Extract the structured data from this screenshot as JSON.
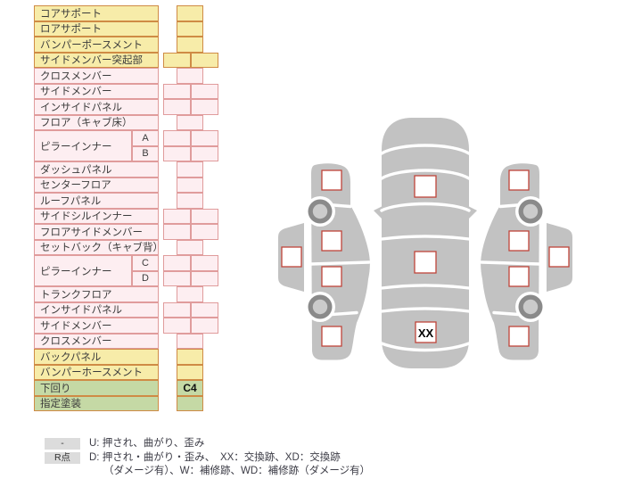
{
  "table": {
    "rows": [
      {
        "label": "コアサポート",
        "color": "yellow",
        "cells": "single",
        "value": ""
      },
      {
        "label": "ロアサポート",
        "color": "yellow",
        "cells": "single",
        "value": ""
      },
      {
        "label": "バンパーポースメント",
        "color": "yellow",
        "cells": "single",
        "value": ""
      },
      {
        "label": "サイドメンバー突起部",
        "color": "yellow",
        "cells": "double",
        "values": [
          "",
          ""
        ]
      },
      {
        "label": "クロスメンバー",
        "color": "pink",
        "cells": "single",
        "value": ""
      },
      {
        "label": "サイドメンバー",
        "color": "pink",
        "cells": "double",
        "values": [
          "",
          ""
        ]
      },
      {
        "label": "インサイドパネル",
        "color": "pink",
        "cells": "double",
        "values": [
          "",
          ""
        ]
      },
      {
        "label": "フロア（キャブ床）",
        "color": "pink",
        "cells": "single",
        "value": ""
      },
      {
        "label": "ピラーインナー",
        "color": "pink",
        "subs": [
          "A",
          "B"
        ],
        "cells": "double",
        "values": [
          "",
          "",
          "",
          ""
        ]
      },
      {
        "label": "ダッシュパネル",
        "color": "pink",
        "cells": "single",
        "value": ""
      },
      {
        "label": "センターフロア",
        "color": "pink",
        "cells": "single",
        "value": ""
      },
      {
        "label": "ルーフパネル",
        "color": "pink",
        "cells": "single",
        "value": ""
      },
      {
        "label": "サイドシルインナー",
        "color": "pink",
        "cells": "double",
        "values": [
          "",
          ""
        ]
      },
      {
        "label": "フロアサイドメンバー",
        "color": "pink",
        "cells": "double",
        "values": [
          "",
          ""
        ]
      },
      {
        "label": "セットバック（キャブ背）",
        "color": "pink",
        "cells": "single",
        "value": ""
      },
      {
        "label": "ピラーインナー",
        "color": "pink",
        "subs": [
          "C",
          "D"
        ],
        "cells": "double",
        "values": [
          "",
          "",
          "",
          ""
        ]
      },
      {
        "label": "トランクフロア",
        "color": "pink",
        "cells": "single",
        "value": ""
      },
      {
        "label": "インサイドパネル",
        "color": "pink",
        "cells": "double",
        "values": [
          "",
          ""
        ]
      },
      {
        "label": "サイドメンバー",
        "color": "pink",
        "cells": "double",
        "values": [
          "",
          ""
        ]
      },
      {
        "label": "クロスメンバー",
        "color": "pink",
        "cells": "single",
        "value": ""
      },
      {
        "label": "バックパネル",
        "color": "yellow",
        "cells": "single",
        "value": ""
      },
      {
        "label": "バンパーホースメント",
        "color": "yellow",
        "cells": "single",
        "value": ""
      },
      {
        "label": "下回り",
        "color": "green",
        "cells": "single",
        "value": "C4"
      },
      {
        "label": "指定塗装",
        "color": "green",
        "cells": "single",
        "value": ""
      }
    ]
  },
  "legend": {
    "items": [
      {
        "chip": "-",
        "text": "U: 押され、曲がり、歪み"
      },
      {
        "chip": "R点",
        "text": "D: 押され・曲がり・歪み、　XX：交換跡、XD：交換跡"
      },
      {
        "chip": "",
        "text": "（ダメージ有）、W：補修跡、WD：補修跡（ダメージ有）"
      }
    ]
  },
  "diagram": {
    "trunk_mark": "XX"
  },
  "colors": {
    "yellow_bg": "#f7eca9",
    "yellow_border": "#cf8b45",
    "pink_bg": "#fdeef1",
    "pink_border": "#e09c9c",
    "green_bg": "#c5d9a5",
    "green_border": "#cf8b45",
    "car_gray": "#c2c2c2",
    "wheel_ring": "#8a8a8a",
    "wheel_hub": "#cbcbcb",
    "checkbox_border": "#c0453a",
    "chip_bg": "#dcdcdc",
    "legend_text": "#3c3c46"
  }
}
